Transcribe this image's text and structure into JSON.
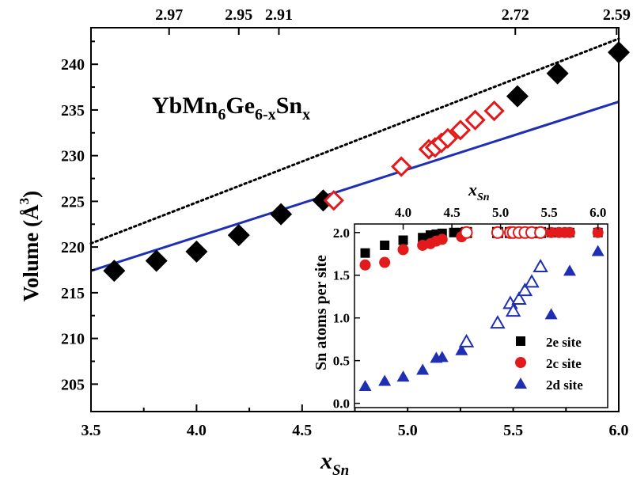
{
  "chart_data": [
    {
      "type": "scatter",
      "title": "YbMn6Ge6-xSnx",
      "xlabel": "x",
      "xlabel_sub": "Sn",
      "ylabel": "Volume (Å3)",
      "xlim": [
        3.5,
        6.0
      ],
      "ylim": [
        202,
        244
      ],
      "x_ticks": [
        "3.5",
        "4.0",
        "4.5",
        "5.0",
        "5.5",
        "6.0"
      ],
      "y_ticks": [
        "205",
        "210",
        "215",
        "220",
        "225",
        "230",
        "235",
        "240"
      ],
      "top_axis_ticks": [
        {
          "x": 3.87,
          "label": "2.97"
        },
        {
          "x": 4.2,
          "label": "2.95"
        },
        {
          "x": 4.39,
          "label": "2.91"
        },
        {
          "x": 5.51,
          "label": "2.72"
        },
        {
          "x": 5.99,
          "label": "2.59"
        }
      ],
      "series": [
        {
          "marker": "filled-diamond",
          "color": "#000000",
          "x": [
            3.61,
            3.81,
            4.0,
            4.2,
            4.4,
            4.6,
            5.52,
            5.71,
            6.0
          ],
          "y": [
            217.4,
            218.5,
            219.5,
            221.3,
            223.6,
            225.1,
            236.5,
            239.0,
            241.3
          ]
        },
        {
          "marker": "open-diamond",
          "color": "#e31a1c",
          "x": [
            4.65,
            4.97,
            5.1,
            5.13,
            5.16,
            5.19,
            5.25,
            5.32,
            5.41
          ],
          "y": [
            225.1,
            228.8,
            230.7,
            230.9,
            231.4,
            231.9,
            232.8,
            233.9,
            234.9
          ]
        }
      ],
      "lines": [
        {
          "style": "solid",
          "color": "#1f2fb4",
          "x": [
            3.5,
            6.0
          ],
          "y": [
            217.4,
            235.9
          ]
        },
        {
          "style": "dotted",
          "color": "#000000",
          "x": [
            3.5,
            6.0
          ],
          "y": [
            220.4,
            242.8
          ]
        }
      ]
    },
    {
      "type": "scatter",
      "xlabel": "x",
      "xlabel_sub": "Sn",
      "ylabel": "Sn atoms per site",
      "xlim": [
        3.5,
        6.1
      ],
      "ylim": [
        -0.05,
        2.1
      ],
      "x_ticks": [
        "4.0",
        "4.5",
        "5.0",
        "5.5",
        "6.0"
      ],
      "y_ticks": [
        "0.0",
        "0.5",
        "1.0",
        "1.5",
        "2.0"
      ],
      "legend_position": "bottom-right",
      "series": [
        {
          "name": "2e site",
          "marker": "square",
          "color": "#000000",
          "filled_x": [
            3.61,
            3.81,
            4.0,
            4.2,
            4.28,
            4.34,
            4.4,
            4.52,
            4.6,
            5.52,
            5.54,
            5.6,
            5.66,
            5.71,
            6.0
          ],
          "filled_y": [
            1.76,
            1.85,
            1.91,
            1.94,
            1.97,
            1.98,
            1.99,
            2.0,
            2.0,
            2.0,
            2.0,
            2.0,
            2.0,
            2.0,
            2.0
          ],
          "open_x": [
            4.65,
            4.97,
            5.1,
            5.19,
            5.25,
            5.32,
            5.41
          ],
          "open_y": [
            2.0,
            2.0,
            2.0,
            2.0,
            2.0,
            2.0,
            2.0
          ]
        },
        {
          "name": "2c site",
          "marker": "circle",
          "color": "#e31a1c",
          "filled_x": [
            3.61,
            3.81,
            4.0,
            4.2,
            4.28,
            4.34,
            4.4,
            4.6,
            5.52,
            5.6,
            5.66,
            5.71,
            6.0
          ],
          "filled_y": [
            1.62,
            1.65,
            1.8,
            1.85,
            1.87,
            1.9,
            1.92,
            1.95,
            2.0,
            2.0,
            2.0,
            2.0,
            2.0
          ],
          "open_x": [
            4.65,
            4.97,
            5.1,
            5.13,
            5.19,
            5.25,
            5.32,
            5.41
          ],
          "open_y": [
            2.0,
            2.0,
            2.0,
            2.0,
            2.0,
            2.0,
            2.0,
            2.0
          ]
        },
        {
          "name": "2d site",
          "marker": "triangle",
          "color": "#1f2fb4",
          "filled_x": [
            3.61,
            3.81,
            4.0,
            4.2,
            4.34,
            4.4,
            4.6,
            5.52,
            5.71,
            6.0
          ],
          "filled_y": [
            0.2,
            0.26,
            0.31,
            0.39,
            0.53,
            0.54,
            0.62,
            1.04,
            1.55,
            1.78
          ],
          "open_x": [
            4.65,
            4.97,
            5.1,
            5.13,
            5.19,
            5.25,
            5.32,
            5.41
          ],
          "open_y": [
            0.72,
            0.94,
            1.17,
            1.08,
            1.22,
            1.32,
            1.42,
            1.6
          ]
        }
      ]
    }
  ]
}
